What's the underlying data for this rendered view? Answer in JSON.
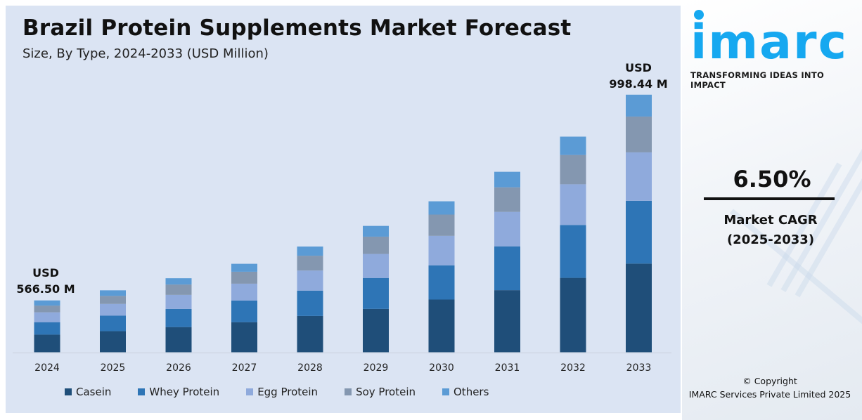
{
  "header": {
    "title": "Brazil Protein Supplements Market Forecast",
    "subtitle": "Size, By Type, 2024-2033 (USD Million)"
  },
  "chart_data": {
    "type": "bar",
    "stacked": true,
    "title": "Brazil Protein Supplements Market Forecast",
    "subtitle": "Size, By Type, 2024-2033 (USD Million)",
    "categories": [
      "2024",
      "2025",
      "2026",
      "2027",
      "2028",
      "2029",
      "2030",
      "2031",
      "2032",
      "2033"
    ],
    "series": [
      {
        "name": "Casein",
        "color": "#1f4e79",
        "values": [
          192.6,
          205.1,
          218.5,
          232.7,
          250.0,
          266.2,
          288.5,
          302.9,
          323.5,
          343.5
        ]
      },
      {
        "name": "Whey Protein",
        "color": "#2e75b6",
        "values": [
          136.0,
          150.8,
          157.4,
          167.7,
          174.9,
          190.2,
          187.6,
          213.9,
          229.7,
          243.6
        ]
      },
      {
        "name": "Egg Protein",
        "color": "#8faadc",
        "values": [
          107.6,
          114.6,
          122.1,
          130.0,
          138.5,
          147.5,
          161.2,
          168.2,
          177.2,
          187.7
        ]
      },
      {
        "name": "Soy Protein",
        "color": "#8497b0",
        "values": [
          73.6,
          78.4,
          90.0,
          92.4,
          102.0,
          106.3,
          116.6,
          119.7,
          127.5,
          138.8
        ]
      },
      {
        "name": "Others",
        "color": "#5b9bd5",
        "values": [
          56.7,
          54.4,
          54.5,
          61.5,
          63.4,
          66.0,
          72.7,
          75.7,
          79.7,
          84.8
        ]
      }
    ],
    "annotations": [
      {
        "category": "2024",
        "line1": "USD",
        "line2": "566.50 M"
      },
      {
        "category": "2033",
        "line1": "USD",
        "line2": "998.44 M"
      }
    ],
    "legend_placement": "bottom",
    "grid": false,
    "y_axis_visible": false
  },
  "sidebar": {
    "logo_text": "imarc",
    "tagline": "TRANSFORMING IDEAS INTO IMPACT",
    "cagr_value": "6.50%",
    "cagr_label_1": "Market CAGR",
    "cagr_label_2": "(2025-2033)",
    "copyright_1": "© Copyright",
    "copyright_2": "IMARC Services Private Limited 2025",
    "brand_color": "#16a8f0"
  }
}
